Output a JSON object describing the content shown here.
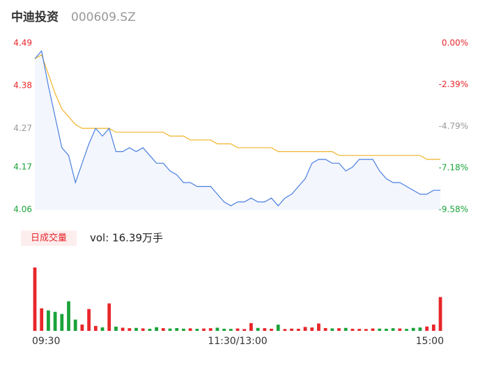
{
  "header": {
    "title": "中迪投资",
    "code": "000609.SZ"
  },
  "chart_data": {
    "type": "intraday",
    "x": [
      0,
      4,
      8,
      12,
      16,
      20,
      24,
      28,
      32,
      36,
      40,
      44,
      48,
      52,
      56,
      60,
      64,
      68,
      72,
      76,
      80,
      84,
      88,
      92,
      96,
      100,
      104,
      108,
      112,
      116,
      120,
      124,
      128,
      132,
      136,
      140,
      144,
      148,
      152,
      156,
      160,
      164,
      168,
      172,
      176,
      180,
      184,
      188,
      192,
      196,
      200,
      204,
      208,
      212,
      216,
      220,
      224,
      228,
      232,
      236,
      240
    ],
    "xlim": [
      0,
      240
    ],
    "xticks": [
      {
        "value": 0,
        "label": "09:30"
      },
      {
        "value": 120,
        "label": "11:30/13:00"
      },
      {
        "value": 240,
        "label": "15:00"
      }
    ],
    "ylim": [
      4.06,
      4.49
    ],
    "yticks": [
      4.06,
      4.17,
      4.27,
      4.38,
      4.49
    ],
    "ytick_colors": [
      "#1aa33a",
      "#1aa33a",
      "#999999",
      "#e8262a",
      "#e8262a"
    ],
    "y2lim": [
      -9.58,
      0
    ],
    "y2ticks": [
      {
        "value": -9.58,
        "label": "-9.58%"
      },
      {
        "value": -7.18,
        "label": "-7.18%"
      },
      {
        "value": -4.79,
        "label": "-4.79%"
      },
      {
        "value": -2.39,
        "label": "-2.39%"
      },
      {
        "value": 0,
        "label": "0.00%"
      }
    ],
    "series": [
      {
        "name": "price",
        "color": "#4a7fe0",
        "values": [
          4.45,
          4.47,
          4.38,
          4.3,
          4.22,
          4.2,
          4.13,
          4.18,
          4.23,
          4.27,
          4.25,
          4.27,
          4.21,
          4.21,
          4.22,
          4.21,
          4.22,
          4.2,
          4.18,
          4.18,
          4.16,
          4.15,
          4.13,
          4.13,
          4.12,
          4.12,
          4.12,
          4.1,
          4.08,
          4.07,
          4.08,
          4.08,
          4.09,
          4.08,
          4.08,
          4.09,
          4.07,
          4.09,
          4.1,
          4.12,
          4.14,
          4.18,
          4.19,
          4.19,
          4.18,
          4.18,
          4.16,
          4.17,
          4.19,
          4.19,
          4.19,
          4.16,
          4.14,
          4.13,
          4.13,
          4.12,
          4.11,
          4.1,
          4.1,
          4.11,
          4.11
        ]
      },
      {
        "name": "average",
        "color": "#f0b429",
        "values": [
          4.45,
          4.46,
          4.41,
          4.36,
          4.32,
          4.3,
          4.28,
          4.27,
          4.27,
          4.27,
          4.27,
          4.27,
          4.26,
          4.26,
          4.26,
          4.26,
          4.26,
          4.26,
          4.26,
          4.26,
          4.25,
          4.25,
          4.25,
          4.24,
          4.24,
          4.24,
          4.24,
          4.23,
          4.23,
          4.23,
          4.22,
          4.22,
          4.22,
          4.22,
          4.22,
          4.22,
          4.21,
          4.21,
          4.21,
          4.21,
          4.21,
          4.21,
          4.21,
          4.21,
          4.21,
          4.2,
          4.2,
          4.2,
          4.2,
          4.2,
          4.2,
          4.2,
          4.2,
          4.2,
          4.2,
          4.2,
          4.2,
          4.2,
          4.19,
          4.19,
          4.19
        ]
      }
    ],
    "volume_label": "日成交量",
    "volume_text": "vol: 16.39万手",
    "volume": [
      9000,
      3200,
      2900,
      2700,
      2400,
      4200,
      1600,
      900,
      3100,
      700,
      500,
      3900,
      600,
      450,
      380,
      420,
      350,
      300,
      520,
      380,
      330,
      400,
      310,
      360,
      290,
      330,
      380,
      450,
      300,
      280,
      340,
      260,
      1100,
      420,
      380,
      300,
      880,
      260,
      320,
      300,
      560,
      480,
      1050,
      400,
      350,
      380,
      420,
      300,
      280,
      260,
      340,
      320,
      300,
      380,
      340,
      280,
      420,
      480,
      620,
      900,
      4800
    ],
    "volume_ylim": [
      0,
      9000
    ],
    "up_color": "#e8262a",
    "down_color": "#1aa33a"
  }
}
